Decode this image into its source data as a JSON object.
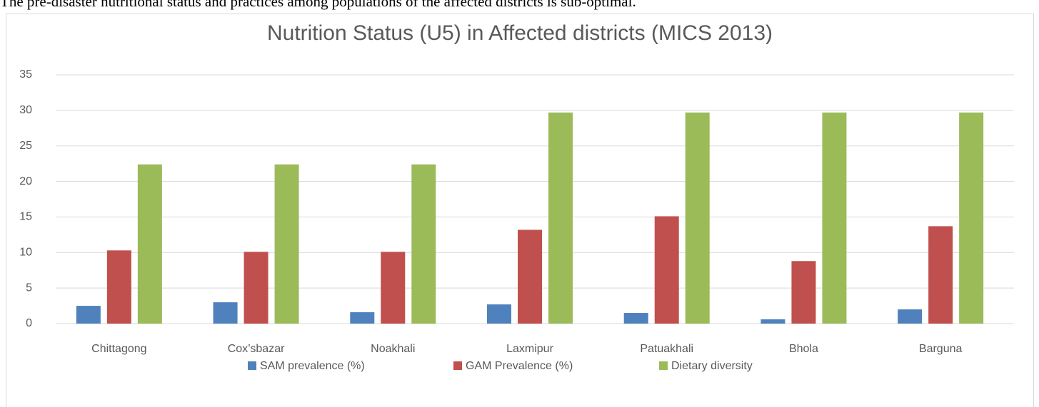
{
  "page_text": "The pre-disaster nutritional status and practices among populations of the affected districts is sub-optimal.",
  "chart_data": {
    "type": "bar",
    "title": "Nutrition Status (U5) in Affected districts (MICS 2013)",
    "categories": [
      "Chittagong",
      "Cox’sbazar",
      "Noakhali",
      "Laxmipur",
      "Patuakhali",
      "Bhola",
      "Barguna"
    ],
    "series": [
      {
        "name": "SAM prevalence (%)",
        "color": "#4f81bd",
        "values": [
          2.5,
          3.0,
          1.6,
          2.7,
          1.5,
          0.6,
          2.0
        ]
      },
      {
        "name": "GAM Prevalence (%)",
        "color": "#c0504d",
        "values": [
          10.3,
          10.1,
          10.1,
          13.2,
          15.1,
          8.8,
          13.7
        ]
      },
      {
        "name": "Dietary diversity",
        "color": "#9bbb59",
        "values": [
          22.4,
          22.4,
          22.4,
          29.7,
          29.7,
          29.7,
          29.7
        ]
      }
    ],
    "ylim": [
      0,
      35
    ],
    "yticks": [
      0,
      5,
      10,
      15,
      20,
      25,
      30,
      35
    ],
    "grid": true,
    "legend": "bottom"
  }
}
